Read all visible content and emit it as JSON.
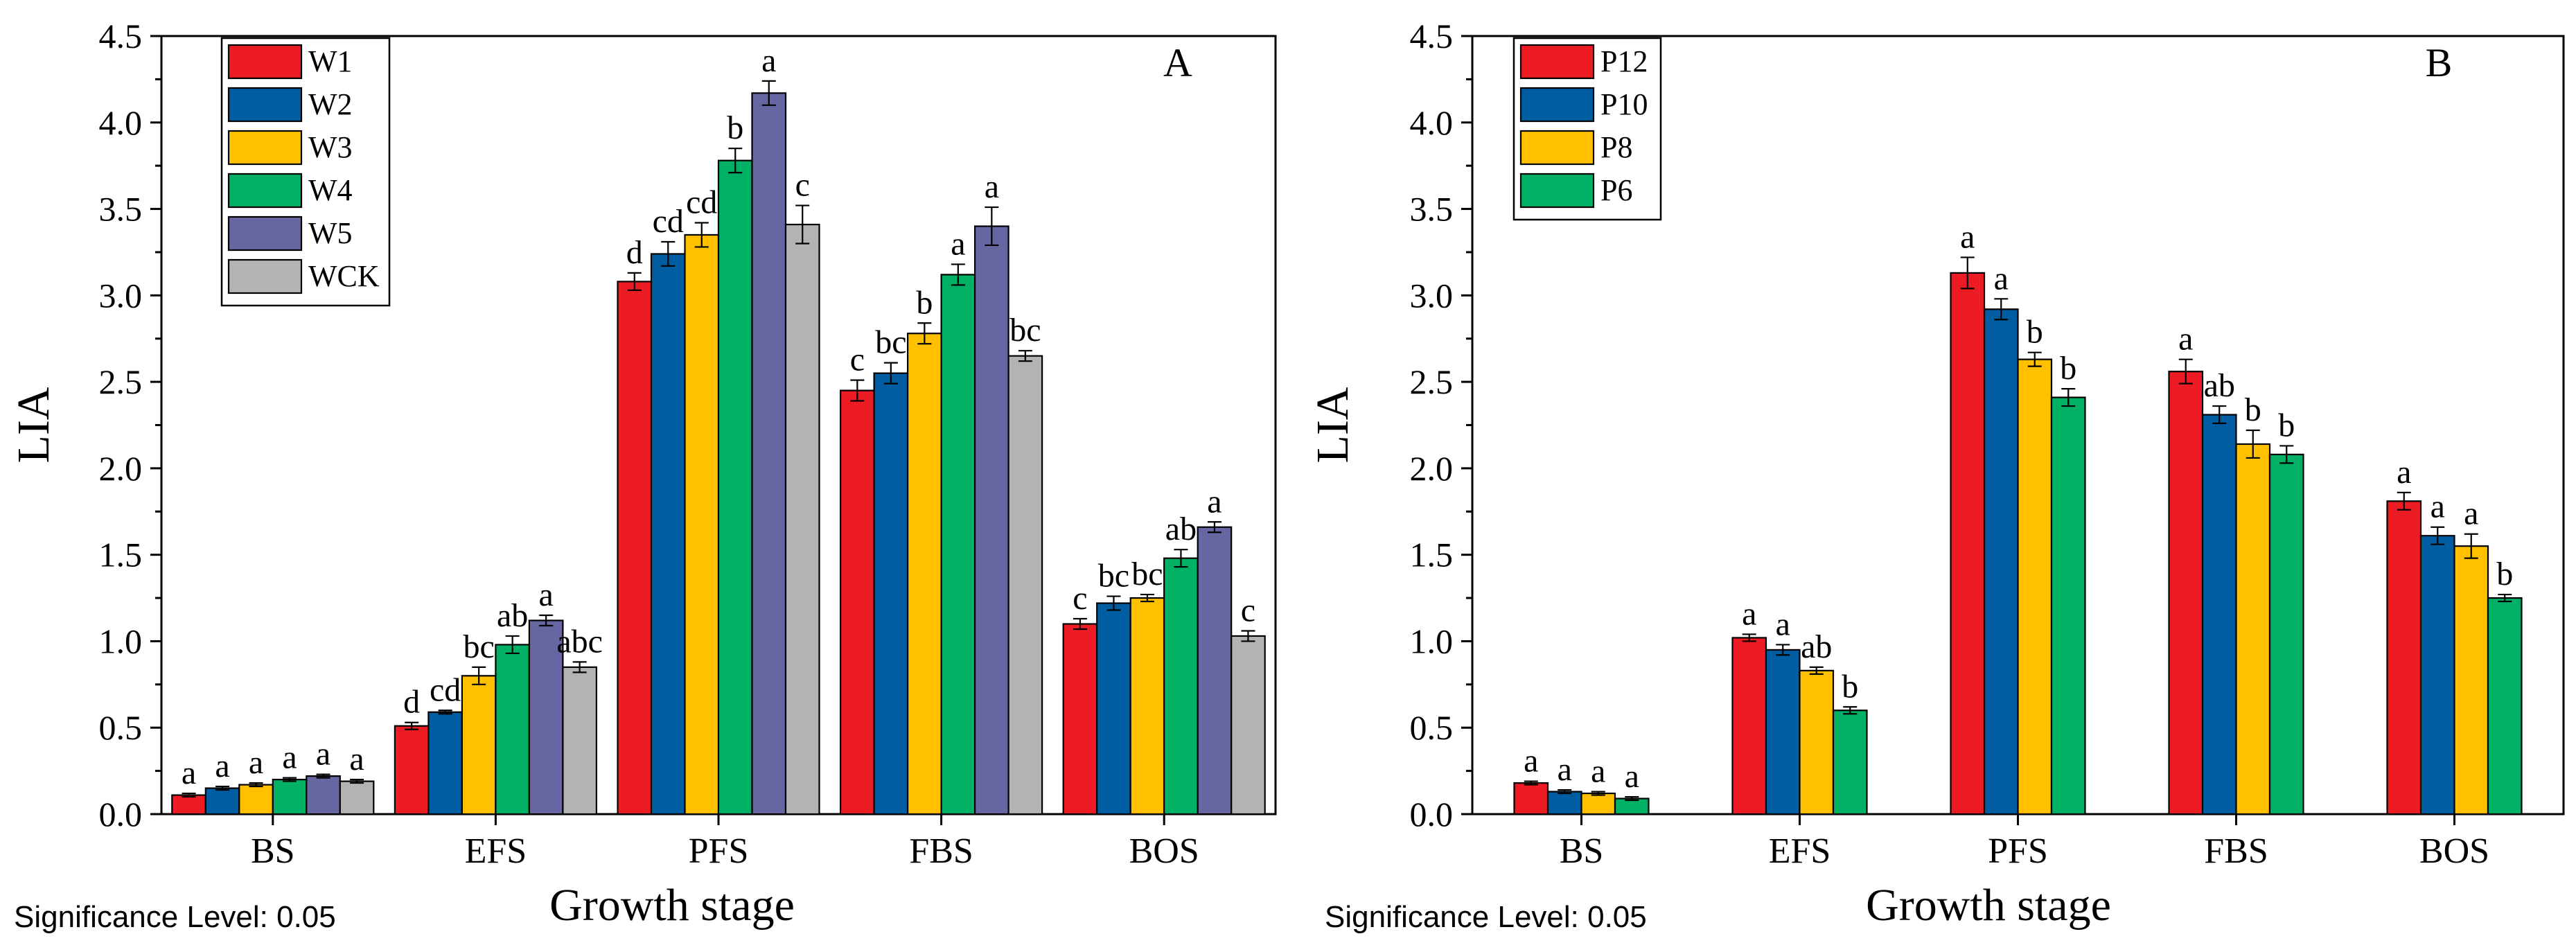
{
  "chart_data": [
    {
      "type": "bar",
      "panel_label": "A",
      "significance_note": "Significance Level: 0.05",
      "xlabel": "Growth stage",
      "ylabel": "LIA",
      "ylim": [
        0,
        4.5
      ],
      "yticks": [
        "0.0",
        "0.5",
        "1.0",
        "1.5",
        "2.0",
        "2.5",
        "3.0",
        "3.5",
        "4.0",
        "4.5"
      ],
      "grid": false,
      "legend_position": "top-left",
      "categories": [
        "BS",
        "EFS",
        "PFS",
        "FBS",
        "BOS"
      ],
      "series": [
        {
          "name": "W1",
          "color": "#ED1C24",
          "values": [
            0.11,
            0.51,
            3.08,
            2.45,
            1.1
          ],
          "errors": [
            0.01,
            0.02,
            0.05,
            0.06,
            0.03
          ],
          "letters": [
            "a",
            "d",
            "d",
            "c",
            "c"
          ]
        },
        {
          "name": "W2",
          "color": "#005DA2",
          "values": [
            0.15,
            0.59,
            3.24,
            2.55,
            1.22
          ],
          "errors": [
            0.01,
            0.01,
            0.07,
            0.06,
            0.04
          ],
          "letters": [
            "a",
            "cd",
            "cd",
            "bc",
            "bc"
          ]
        },
        {
          "name": "W3",
          "color": "#FFC000",
          "values": [
            0.17,
            0.8,
            3.35,
            2.78,
            1.25
          ],
          "errors": [
            0.01,
            0.05,
            0.07,
            0.06,
            0.02
          ],
          "letters": [
            "a",
            "bc",
            "cd",
            "b",
            "bc"
          ]
        },
        {
          "name": "W4",
          "color": "#00B165",
          "values": [
            0.2,
            0.98,
            3.78,
            3.12,
            1.48
          ],
          "errors": [
            0.01,
            0.05,
            0.07,
            0.06,
            0.05
          ],
          "letters": [
            "a",
            "ab",
            "b",
            "a",
            "ab"
          ]
        },
        {
          "name": "W5",
          "color": "#6666A3",
          "values": [
            0.22,
            1.12,
            4.17,
            3.4,
            1.66
          ],
          "errors": [
            0.01,
            0.03,
            0.07,
            0.11,
            0.03
          ],
          "letters": [
            "a",
            "a",
            "a",
            "a",
            "a"
          ]
        },
        {
          "name": "WCK",
          "color": "#B3B3B3",
          "values": [
            0.19,
            0.85,
            3.41,
            2.65,
            1.03
          ],
          "errors": [
            0.01,
            0.03,
            0.11,
            0.03,
            0.03
          ],
          "letters": [
            "a",
            "abc",
            "c",
            "bc",
            "c"
          ]
        }
      ]
    },
    {
      "type": "bar",
      "panel_label": "B",
      "significance_note": "Significance Level: 0.05",
      "xlabel": "Growth stage",
      "ylabel": "LIA",
      "ylim": [
        0,
        4.5
      ],
      "yticks": [
        "0.0",
        "0.5",
        "1.0",
        "1.5",
        "2.0",
        "2.5",
        "3.0",
        "3.5",
        "4.0",
        "4.5"
      ],
      "grid": false,
      "legend_position": "top-left",
      "categories": [
        "BS",
        "EFS",
        "PFS",
        "FBS",
        "BOS"
      ],
      "series": [
        {
          "name": "P12",
          "color": "#ED1C24",
          "values": [
            0.18,
            1.02,
            3.13,
            2.56,
            1.81
          ],
          "errors": [
            0.01,
            0.02,
            0.09,
            0.07,
            0.05
          ],
          "letters": [
            "a",
            "a",
            "a",
            "a",
            "a"
          ]
        },
        {
          "name": "P10",
          "color": "#005DA2",
          "values": [
            0.13,
            0.95,
            2.92,
            2.31,
            1.61
          ],
          "errors": [
            0.01,
            0.03,
            0.06,
            0.05,
            0.05
          ],
          "letters": [
            "a",
            "a",
            "a",
            "ab",
            "a"
          ]
        },
        {
          "name": "P8",
          "color": "#FFC000",
          "values": [
            0.12,
            0.83,
            2.63,
            2.14,
            1.55
          ],
          "errors": [
            0.01,
            0.02,
            0.04,
            0.08,
            0.07
          ],
          "letters": [
            "a",
            "ab",
            "b",
            "b",
            "a"
          ]
        },
        {
          "name": "P6",
          "color": "#00B165",
          "values": [
            0.09,
            0.6,
            2.41,
            2.08,
            1.25
          ],
          "errors": [
            0.01,
            0.02,
            0.05,
            0.05,
            0.02
          ],
          "letters": [
            "a",
            "b",
            "b",
            "b",
            "b"
          ]
        }
      ]
    }
  ]
}
